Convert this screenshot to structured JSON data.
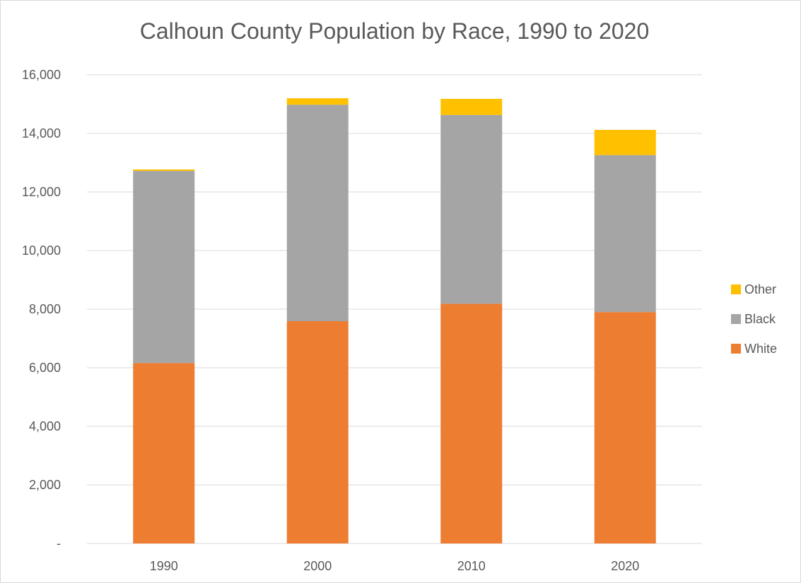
{
  "chart_data": {
    "type": "bar",
    "stacked": true,
    "title": "Calhoun County Population by Race, 1990 to 2020",
    "categories": [
      "1990",
      "2000",
      "2010",
      "2020"
    ],
    "series": [
      {
        "name": "White",
        "values": [
          6160,
          7590,
          8180,
          7900
        ],
        "color": "#ED7D31"
      },
      {
        "name": "Black",
        "values": [
          6560,
          7390,
          6450,
          5360
        ],
        "color": "#A5A5A5"
      },
      {
        "name": "Other",
        "values": [
          50,
          220,
          550,
          860
        ],
        "color": "#FFC000"
      }
    ],
    "ylim": [
      0,
      16000
    ],
    "yticks": [
      0,
      2000,
      4000,
      6000,
      8000,
      10000,
      12000,
      14000,
      16000
    ],
    "ytick_labels": [
      "-",
      "2,000",
      "4,000",
      "6,000",
      "8,000",
      "10,000",
      "12,000",
      "14,000",
      "16,000"
    ],
    "legend_order": [
      "Other",
      "Black",
      "White"
    ],
    "legend_position": "right",
    "grid": true,
    "gridline_color": "#d9d9d9",
    "xlabel": "",
    "ylabel": ""
  }
}
